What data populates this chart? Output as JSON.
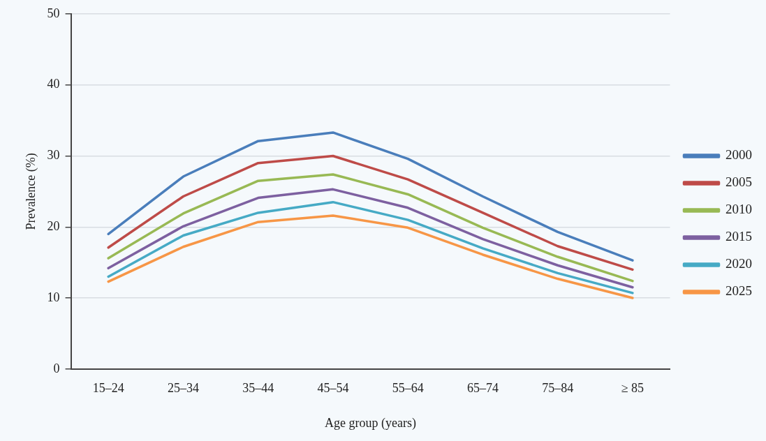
{
  "chart_data": {
    "type": "line",
    "xlabel": "Age group (years)",
    "ylabel": "Prevalence (%)",
    "categories": [
      "15–24",
      "25–34",
      "35–44",
      "45–54",
      "55–64",
      "65–74",
      "75–84",
      "≥ 85"
    ],
    "series": [
      {
        "name": "2000",
        "color": "#4a7ebb",
        "values": [
          19.0,
          27.1,
          32.1,
          33.3,
          29.6,
          24.3,
          19.3,
          15.3
        ]
      },
      {
        "name": "2005",
        "color": "#be4b48",
        "values": [
          17.1,
          24.3,
          29.0,
          30.0,
          26.7,
          22.0,
          17.3,
          14.0
        ]
      },
      {
        "name": "2010",
        "color": "#98b954",
        "values": [
          15.6,
          21.9,
          26.5,
          27.4,
          24.6,
          19.9,
          15.8,
          12.4
        ]
      },
      {
        "name": "2015",
        "color": "#7d60a0",
        "values": [
          14.2,
          20.1,
          24.1,
          25.3,
          22.7,
          18.3,
          14.6,
          11.5
        ]
      },
      {
        "name": "2020",
        "color": "#46aac5",
        "values": [
          13.0,
          18.8,
          22.0,
          23.5,
          21.0,
          17.0,
          13.5,
          10.7
        ]
      },
      {
        "name": "2025",
        "color": "#f79646",
        "values": [
          12.3,
          17.2,
          20.7,
          21.6,
          19.9,
          16.1,
          12.7,
          10.0
        ]
      }
    ],
    "ylim": [
      0,
      50
    ],
    "yticks": [
      0,
      10,
      20,
      30,
      40,
      50
    ],
    "grid": "y",
    "legend": "right",
    "marker": "none",
    "line_style": "solid"
  }
}
